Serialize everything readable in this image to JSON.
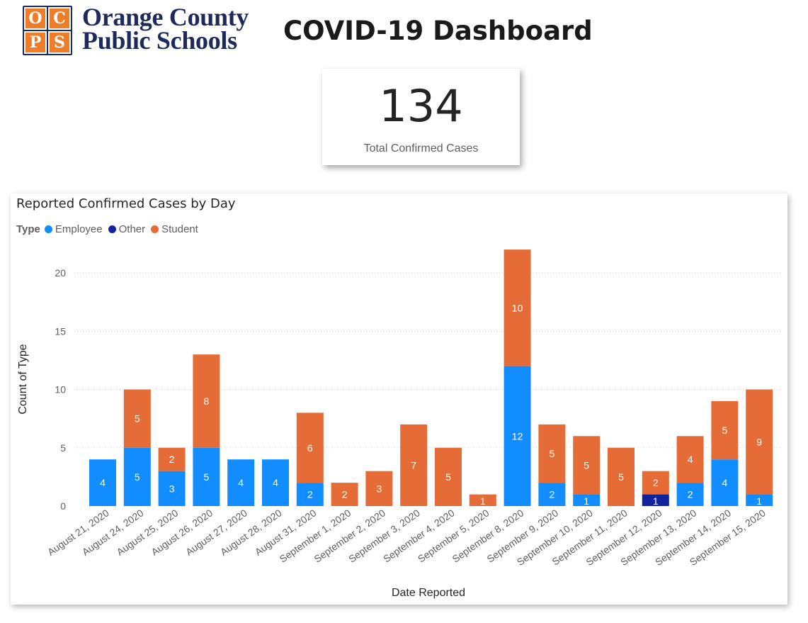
{
  "header": {
    "logo_letters": [
      "O",
      "C",
      "P",
      "S"
    ],
    "logo_line1": "Orange County",
    "logo_line2": "Public Schools",
    "title": "COVID-19 Dashboard"
  },
  "kpi": {
    "value": "134",
    "label": "Total Confirmed Cases"
  },
  "legend": {
    "title": "Type"
  },
  "chart_data": {
    "type": "bar",
    "stacked": true,
    "title": "Reported Confirmed Cases by Day",
    "xlabel": "Date Reported",
    "ylabel": "Count of Type",
    "ylim": [
      0,
      22
    ],
    "yticks": [
      0,
      5,
      10,
      15,
      20
    ],
    "grid": true,
    "legend_position": "top-left",
    "categories": [
      "August 21, 2020",
      "August 24, 2020",
      "August 25, 2020",
      "August 26, 2020",
      "August 27, 2020",
      "August 28, 2020",
      "August 31, 2020",
      "September 1, 2020",
      "September 2, 2020",
      "September 3, 2020",
      "September 4, 2020",
      "September 5, 2020",
      "September 8, 2020",
      "September 9, 2020",
      "September 10, 2020",
      "September 11, 2020",
      "September 12, 2020",
      "September 13, 2020",
      "September 14, 2020",
      "September 15, 2020"
    ],
    "series": [
      {
        "name": "Employee",
        "color": "#118dff",
        "values": [
          4,
          5,
          3,
          5,
          4,
          4,
          2,
          0,
          0,
          0,
          0,
          0,
          12,
          2,
          1,
          0,
          0,
          2,
          4,
          1
        ]
      },
      {
        "name": "Other",
        "color": "#12239e",
        "values": [
          0,
          0,
          0,
          0,
          0,
          0,
          0,
          0,
          0,
          0,
          0,
          0,
          0,
          0,
          0,
          0,
          1,
          0,
          0,
          0
        ]
      },
      {
        "name": "Student",
        "color": "#e66c37",
        "values": [
          0,
          5,
          2,
          8,
          0,
          0,
          6,
          2,
          3,
          7,
          5,
          1,
          10,
          5,
          5,
          5,
          2,
          4,
          5,
          9
        ]
      }
    ]
  }
}
